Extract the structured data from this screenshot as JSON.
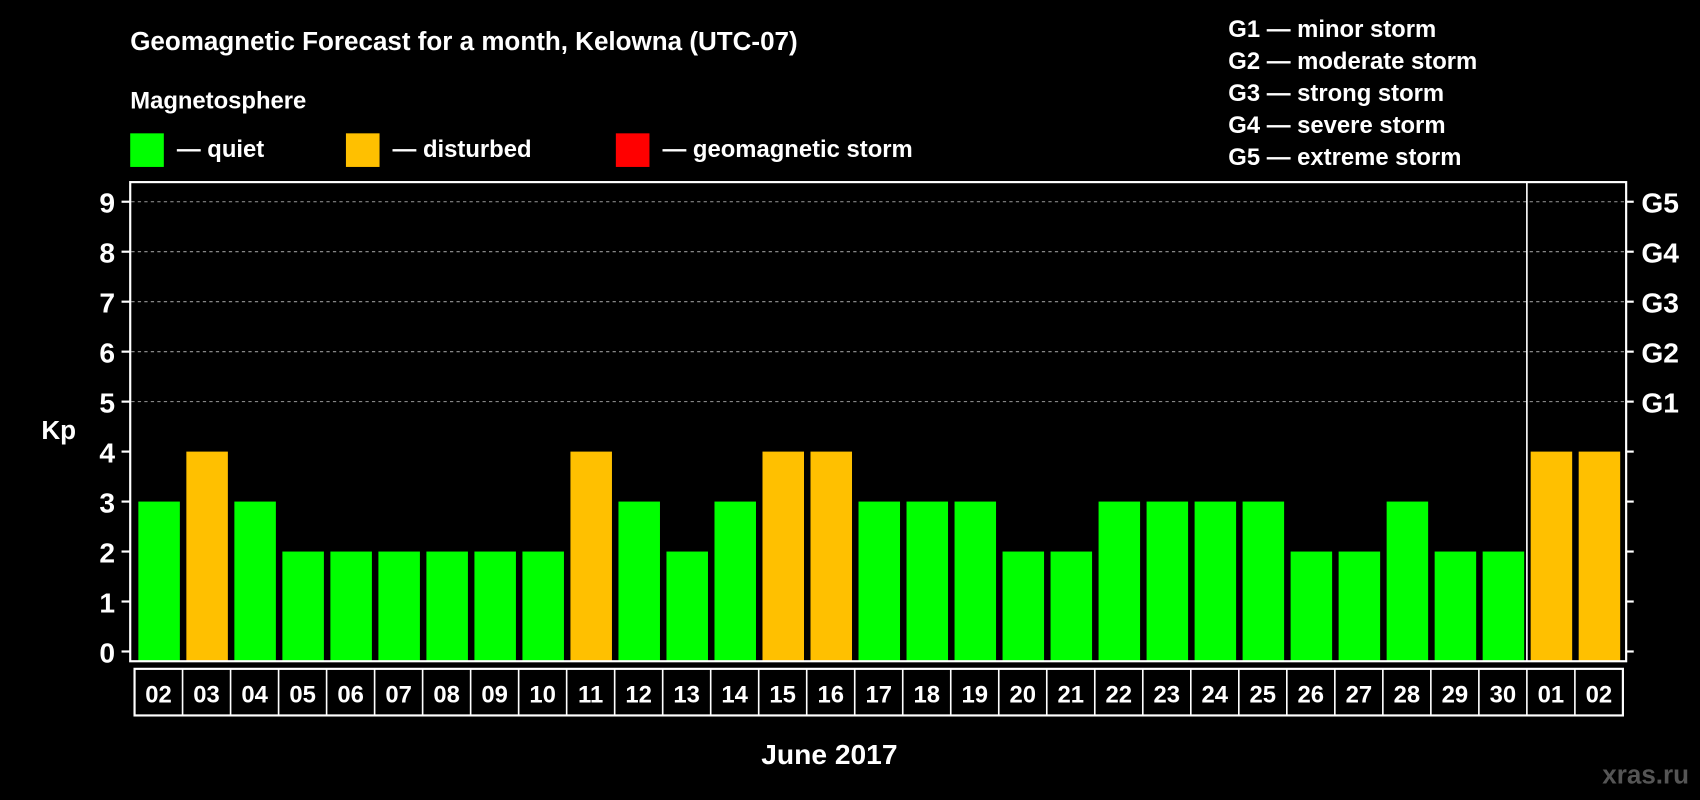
{
  "colors": {
    "quiet": "#00ff00",
    "disturbed": "#ffc000",
    "storm": "#ff0000",
    "background": "#000000",
    "text": "#ffffff"
  },
  "chart_data": {
    "type": "bar",
    "title": "Geomagnetic Forecast for a month, Kelowna (UTC-07)",
    "subtitle": "Magnetosphere",
    "legend": [
      {
        "label": "— quiet",
        "color": "#00ff00"
      },
      {
        "label": "— disturbed",
        "color": "#ffc000"
      },
      {
        "label": "— geomagnetic storm",
        "color": "#ff0000"
      }
    ],
    "storm_scale": [
      "G1 — minor storm",
      "G2 — moderate storm",
      "G3 — strong storm",
      "G4 — severe storm",
      "G5 — extreme storm"
    ],
    "ylabel": "Kp",
    "xlabel": "June 2017",
    "ylim": [
      0,
      9
    ],
    "yticks": [
      "0",
      "1",
      "2",
      "3",
      "4",
      "5",
      "6",
      "7",
      "8",
      "9"
    ],
    "right_ticks": [
      {
        "kp": 5,
        "label": "G1"
      },
      {
        "kp": 6,
        "label": "G2"
      },
      {
        "kp": 7,
        "label": "G3"
      },
      {
        "kp": 8,
        "label": "G4"
      },
      {
        "kp": 9,
        "label": "G5"
      }
    ],
    "categories": [
      "02",
      "03",
      "04",
      "05",
      "06",
      "07",
      "08",
      "09",
      "10",
      "11",
      "12",
      "13",
      "14",
      "15",
      "16",
      "17",
      "18",
      "19",
      "20",
      "21",
      "22",
      "23",
      "24",
      "25",
      "26",
      "27",
      "28",
      "29",
      "30",
      "01",
      "02"
    ],
    "values": [
      3,
      4,
      3,
      2,
      2,
      2,
      2,
      2,
      2,
      4,
      3,
      2,
      3,
      4,
      4,
      3,
      3,
      3,
      2,
      2,
      3,
      3,
      3,
      3,
      2,
      2,
      3,
      2,
      2,
      4,
      4
    ],
    "month_separator_after_index": 28,
    "grid": "dashed at Kp 5-9"
  },
  "watermark": "xras.ru"
}
